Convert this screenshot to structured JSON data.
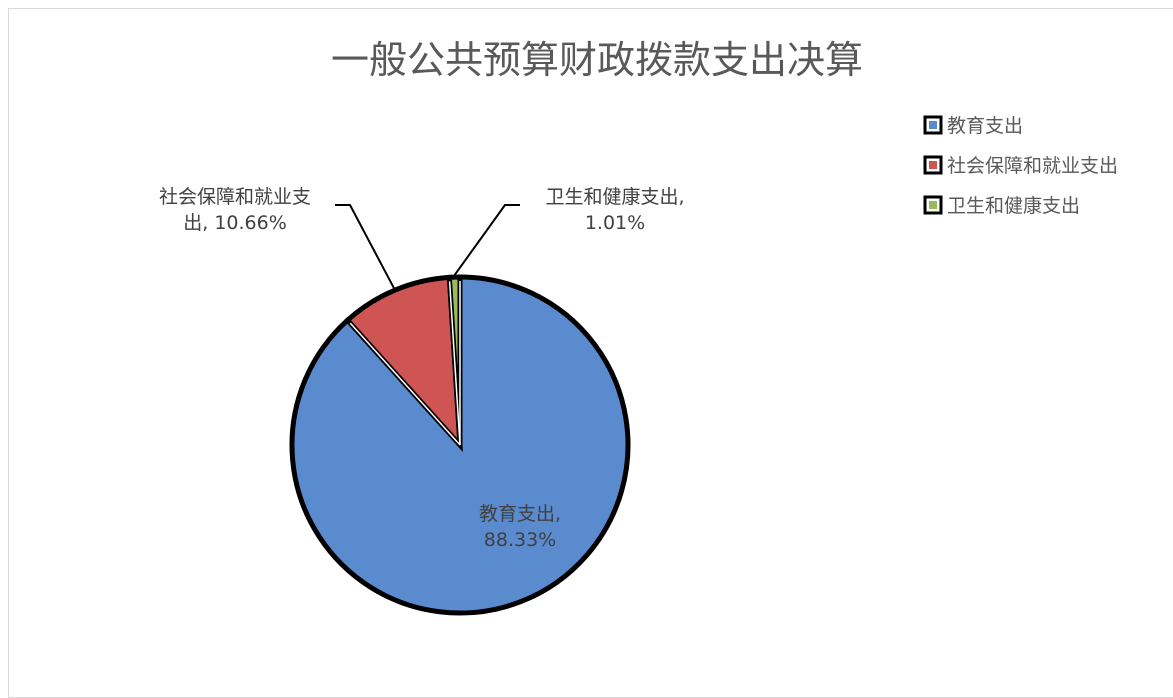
{
  "chart_data": {
    "type": "pie",
    "title": "一般公共预算财政拨款支出决算",
    "legend_position": "top-right",
    "categories": [
      "教育支出",
      "社会保障和就业支出",
      "卫生和健康支出"
    ],
    "values": [
      88.33,
      10.66,
      1.01
    ],
    "value_unit": "%",
    "colors": [
      "#5b8bcf",
      "#cf5554",
      "#9bbb59"
    ],
    "outline_color": "#000000",
    "data_labels": [
      {
        "lines": [
          "教育支出,",
          "88.33%"
        ]
      },
      {
        "lines": [
          "社会保障和就业支",
          "出, 10.66%"
        ]
      },
      {
        "lines": [
          "卫生和健康支出,",
          "1.01%"
        ]
      }
    ]
  }
}
